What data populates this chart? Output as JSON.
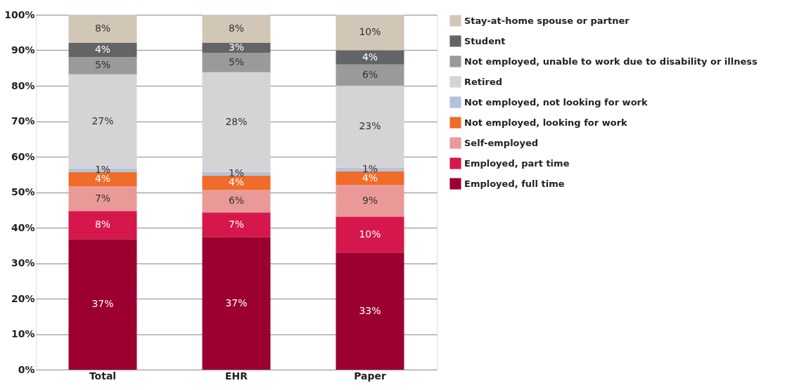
{
  "chart_data": {
    "type": "bar",
    "stacked": true,
    "categories": [
      "Total",
      "EHR",
      "Paper"
    ],
    "series": [
      {
        "name": "Employed, full time",
        "color": "#9b0031",
        "values": [
          36.8,
          37.4,
          33.0
        ],
        "value_labels": [
          "37%",
          "37%",
          "33%"
        ]
      },
      {
        "name": "Employed, part time",
        "color": "#d6174b",
        "values": [
          7.9,
          6.9,
          10.1
        ],
        "value_labels": [
          "8%",
          "7%",
          "10%"
        ]
      },
      {
        "name": "Self-employed",
        "color": "#e99a98",
        "values": [
          6.9,
          6.3,
          8.9
        ],
        "value_labels": [
          "7%",
          "6%",
          "9%"
        ]
      },
      {
        "name": "Not employed, looking for work",
        "color": "#ef6c2b",
        "values": [
          4.1,
          4.1,
          3.9
        ],
        "value_labels": [
          "4%",
          "4%",
          "4%"
        ]
      },
      {
        "name": "Not employed, not looking for work",
        "color": "#b1c3dc",
        "values": [
          1.0,
          1.0,
          1.0
        ],
        "value_labels": [
          "1%",
          "1%",
          "1%"
        ]
      },
      {
        "name": "Retired",
        "color": "#d4d4d6",
        "values": [
          26.5,
          28.1,
          23.1
        ],
        "value_labels": [
          "27%",
          "28%",
          "23%"
        ]
      },
      {
        "name": "Not employed, unable to work due to disability or illness",
        "color": "#9a9a9c",
        "values": [
          4.9,
          5.5,
          6.0
        ],
        "value_labels": [
          "5%",
          "5%",
          "6%"
        ]
      },
      {
        "name": "Student",
        "color": "#636466",
        "values": [
          4.0,
          2.8,
          4.0
        ],
        "value_labels": [
          "4%",
          "3%",
          "4%"
        ]
      },
      {
        "name": "Stay-at-home spouse or partner",
        "color": "#d2c6b6",
        "values": [
          7.9,
          7.9,
          10.0
        ],
        "value_labels": [
          "8%",
          "8%",
          "10%"
        ]
      }
    ],
    "ylim": [
      0,
      100
    ],
    "yticks": [
      {
        "value": 0,
        "label": "0%"
      },
      {
        "value": 10,
        "label": "10%"
      },
      {
        "value": 20,
        "label": "20%"
      },
      {
        "value": 30,
        "label": "30%"
      },
      {
        "value": 40,
        "label": "40%"
      },
      {
        "value": 50,
        "label": "50%"
      },
      {
        "value": 60,
        "label": "60%"
      },
      {
        "value": 70,
        "label": "70%"
      },
      {
        "value": 80,
        "label": "80%"
      },
      {
        "value": 90,
        "label": "90%"
      },
      {
        "value": 100,
        "label": "100%"
      }
    ],
    "grid": "y",
    "legend": "right"
  }
}
